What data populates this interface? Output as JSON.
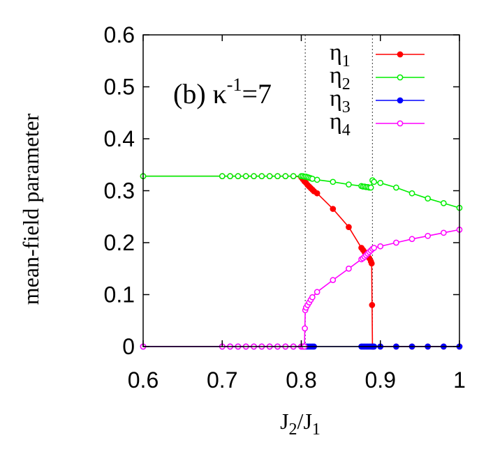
{
  "chart_data": {
    "type": "line",
    "title": "",
    "annotation": {
      "prefix": "(b) ",
      "kappa": "κ",
      "exp": "-1",
      "suffix": "=7"
    },
    "xlabel": {
      "main": "J",
      "sub1": "2",
      "slash": "/J",
      "sub2": "1"
    },
    "ylabel": "mean-field parameter",
    "xlim": [
      0.6,
      1.0
    ],
    "ylim": [
      0,
      0.6
    ],
    "xticks": [
      0.6,
      0.7,
      0.8,
      0.9,
      1.0
    ],
    "xtick_labels": [
      "0.6",
      "0.7",
      "0.8",
      "0.9",
      "1"
    ],
    "yticks": [
      0,
      0.1,
      0.2,
      0.3,
      0.4,
      0.5,
      0.6
    ],
    "ytick_labels": [
      "0",
      "0.1",
      "0.2",
      "0.3",
      "0.4",
      "0.5",
      "0.6"
    ],
    "vlines": [
      0.805,
      0.89
    ],
    "grid": false,
    "legend_position": "top-right",
    "series": [
      {
        "name": "η",
        "sub": "1",
        "color": "#ff0000",
        "marker": "filled",
        "x": [
          0.6,
          0.7,
          0.71,
          0.72,
          0.73,
          0.74,
          0.75,
          0.76,
          0.77,
          0.78,
          0.79,
          0.8,
          0.802,
          0.804,
          0.806,
          0.808,
          0.81,
          0.812,
          0.814,
          0.816,
          0.82,
          0.84,
          0.86,
          0.876,
          0.878,
          0.88,
          0.882,
          0.884,
          0.886,
          0.888,
          0.889,
          0.8895,
          0.89,
          0.891,
          0.9,
          0.92,
          0.94,
          0.96,
          0.98,
          1.0
        ],
        "y": [
          0.328,
          0.328,
          0.328,
          0.328,
          0.328,
          0.328,
          0.328,
          0.328,
          0.328,
          0.328,
          0.328,
          0.326,
          0.322,
          0.318,
          0.315,
          0.311,
          0.308,
          0.305,
          0.302,
          0.299,
          0.295,
          0.265,
          0.23,
          0.19,
          0.186,
          0.182,
          0.178,
          0.174,
          0.17,
          0.164,
          0.16,
          0.08,
          0,
          0,
          0,
          0,
          0,
          0,
          0,
          0
        ]
      },
      {
        "name": "η",
        "sub": "2",
        "color": "#00ee00",
        "marker": "open",
        "x": [
          0.6,
          0.7,
          0.71,
          0.72,
          0.73,
          0.74,
          0.75,
          0.76,
          0.77,
          0.78,
          0.79,
          0.8,
          0.802,
          0.804,
          0.806,
          0.808,
          0.81,
          0.812,
          0.814,
          0.82,
          0.84,
          0.86,
          0.876,
          0.878,
          0.88,
          0.882,
          0.884,
          0.886,
          0.888,
          0.89,
          0.892,
          0.9,
          0.92,
          0.94,
          0.96,
          0.98,
          1.0
        ],
        "y": [
          0.328,
          0.328,
          0.328,
          0.328,
          0.328,
          0.328,
          0.328,
          0.328,
          0.328,
          0.328,
          0.328,
          0.328,
          0.328,
          0.327,
          0.327,
          0.326,
          0.325,
          0.324,
          0.323,
          0.321,
          0.317,
          0.312,
          0.309,
          0.308,
          0.308,
          0.307,
          0.307,
          0.306,
          0.306,
          0.32,
          0.317,
          0.315,
          0.306,
          0.295,
          0.285,
          0.276,
          0.267
        ]
      },
      {
        "name": "η",
        "sub": "3",
        "color": "#0000ff",
        "marker": "filled",
        "x": [
          0.6,
          0.7,
          0.71,
          0.72,
          0.73,
          0.74,
          0.75,
          0.76,
          0.77,
          0.78,
          0.79,
          0.8,
          0.802,
          0.804,
          0.806,
          0.808,
          0.81,
          0.812,
          0.814,
          0.816,
          0.876,
          0.878,
          0.88,
          0.882,
          0.884,
          0.886,
          0.888,
          0.89,
          0.892,
          0.9,
          0.92,
          0.94,
          0.96,
          0.98,
          1.0
        ],
        "y": [
          0,
          0,
          0,
          0,
          0,
          0,
          0,
          0,
          0,
          0,
          0,
          0,
          0,
          0,
          0,
          0,
          0,
          0,
          0,
          0,
          0,
          0,
          0,
          0,
          0,
          0,
          0,
          0,
          0,
          0,
          0,
          0,
          0,
          0,
          0
        ]
      },
      {
        "name": "η",
        "sub": "4",
        "color": "#ff00ff",
        "marker": "open",
        "x": [
          0.6,
          0.7,
          0.71,
          0.72,
          0.73,
          0.74,
          0.75,
          0.76,
          0.77,
          0.78,
          0.79,
          0.8,
          0.802,
          0.804,
          0.8045,
          0.805,
          0.806,
          0.808,
          0.81,
          0.812,
          0.814,
          0.82,
          0.84,
          0.86,
          0.876,
          0.878,
          0.88,
          0.882,
          0.884,
          0.886,
          0.888,
          0.89,
          0.892,
          0.9,
          0.92,
          0.94,
          0.96,
          0.98,
          1.0
        ],
        "y": [
          0,
          0,
          0,
          0,
          0,
          0,
          0,
          0,
          0,
          0,
          0,
          0,
          0,
          0,
          0.035,
          0.07,
          0.075,
          0.08,
          0.085,
          0.09,
          0.095,
          0.105,
          0.128,
          0.15,
          0.168,
          0.17,
          0.173,
          0.176,
          0.179,
          0.182,
          0.185,
          0.188,
          0.19,
          0.193,
          0.2,
          0.207,
          0.213,
          0.219,
          0.225
        ]
      }
    ]
  }
}
